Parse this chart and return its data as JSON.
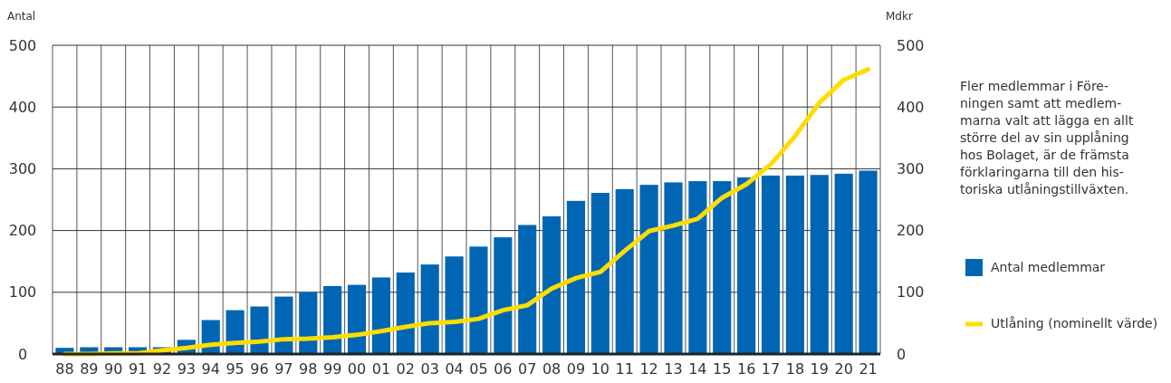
{
  "chart_data": {
    "type": "bar",
    "ylabel": "Antal",
    "y2label": "Mdkr",
    "categories": [
      "88",
      "89",
      "90",
      "91",
      "92",
      "93",
      "94",
      "95",
      "96",
      "97",
      "98",
      "99",
      "00",
      "01",
      "02",
      "03",
      "04",
      "05",
      "06",
      "07",
      "08",
      "09",
      "10",
      "11",
      "12",
      "13",
      "14",
      "15",
      "16",
      "17",
      "18",
      "19",
      "20",
      "21"
    ],
    "series": [
      {
        "name": "Antal medlemmar",
        "color": "#0066b3",
        "values": [
          10,
          11,
          11,
          11,
          11,
          23,
          55,
          71,
          77,
          93,
          100,
          110,
          112,
          124,
          132,
          145,
          158,
          174,
          189,
          209,
          223,
          248,
          261,
          267,
          274,
          278,
          280,
          280,
          286,
          289,
          289,
          290,
          292,
          297
        ]
      },
      {
        "name": "Utlåning (nominellt värde)",
        "type": "line",
        "axis": "y2",
        "color": "#ffdd00",
        "values": [
          0,
          0,
          1,
          1,
          6,
          10,
          15,
          18,
          20,
          24,
          25,
          27,
          31,
          37,
          44,
          50,
          52,
          57,
          71,
          79,
          106,
          123,
          133,
          167,
          199,
          208,
          219,
          253,
          275,
          307,
          353,
          407,
          444,
          461
        ]
      }
    ],
    "ylim": [
      0,
      500
    ],
    "yticks": [
      0,
      100,
      200,
      300,
      400,
      500
    ],
    "y2lim": [
      0,
      500
    ],
    "y2ticks": [
      0,
      100,
      200,
      300,
      400,
      500
    ],
    "grid": true,
    "legend": "bottom right",
    "line_style": "solid",
    "marker": "none",
    "annotations": [
      "Fler medlemmar i Före-\nningen samt att medlem-\nmarna valt att lägga en allt\nstörre del av sin upplåning\nhos Bolaget, är de främsta\nförklaringarna till den his-\ntoriska utlåningstillväxten."
    ]
  }
}
